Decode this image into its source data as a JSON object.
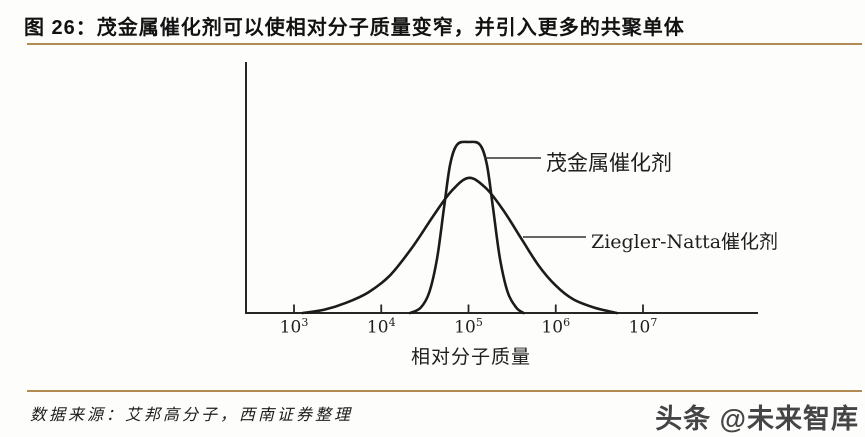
{
  "figure": {
    "title": "图 26：茂金属催化剂可以使相对分子质量变窄，并引入更多的共聚单体",
    "source_note": "数据来源：艾邦高分子，西南证券整理",
    "watermark": "头条 @未来智库",
    "accent_color": "#b28b52"
  },
  "chart_data": {
    "type": "line",
    "title": "",
    "xlabel": "相对分子质量",
    "ylabel": "",
    "x_axis": {
      "label": "相对分子质量",
      "scale": "log10",
      "tick_base": "10",
      "tick_exponents": [
        3,
        4,
        5,
        6,
        7
      ],
      "tick_values": [
        1000,
        10000,
        100000,
        1000000,
        10000000
      ],
      "range_log10": [
        2.4,
        7.3
      ]
    },
    "y_axis": {
      "label": "",
      "ticks": [],
      "range_relative": [
        0,
        1
      ]
    },
    "grid": false,
    "legend_position": "inline-callouts",
    "points_format": "[log10_relative_molecular_mass, relative_abundance_0_to_1]",
    "series": [
      {
        "name": "茂金属催化剂",
        "color": "#1b1b1b",
        "peak_log10_x": 5.0,
        "peak_relative_height": 1.0,
        "distribution": "narrow",
        "points": [
          [
            4.33,
            0.0
          ],
          [
            4.45,
            0.03
          ],
          [
            4.55,
            0.12
          ],
          [
            4.64,
            0.32
          ],
          [
            4.72,
            0.62
          ],
          [
            4.79,
            0.87
          ],
          [
            4.87,
            0.985
          ],
          [
            5.0,
            1.0
          ],
          [
            5.13,
            0.985
          ],
          [
            5.21,
            0.87
          ],
          [
            5.28,
            0.62
          ],
          [
            5.36,
            0.32
          ],
          [
            5.45,
            0.12
          ],
          [
            5.55,
            0.03
          ],
          [
            5.63,
            0.0
          ]
        ]
      },
      {
        "name": "Ziegler-Natta催化剂",
        "color": "#1b1b1b",
        "peak_log10_x": 5.0,
        "peak_relative_height": 0.79,
        "distribution": "broad",
        "points": [
          [
            3.1,
            0.0
          ],
          [
            3.35,
            0.02
          ],
          [
            3.6,
            0.06
          ],
          [
            3.85,
            0.12
          ],
          [
            4.1,
            0.22
          ],
          [
            4.35,
            0.38
          ],
          [
            4.6,
            0.57
          ],
          [
            4.8,
            0.71
          ],
          [
            5.0,
            0.79
          ],
          [
            5.2,
            0.73
          ],
          [
            5.4,
            0.6
          ],
          [
            5.6,
            0.44
          ],
          [
            5.8,
            0.28
          ],
          [
            6.0,
            0.16
          ],
          [
            6.2,
            0.08
          ],
          [
            6.45,
            0.03
          ],
          [
            6.7,
            0.0
          ]
        ]
      }
    ]
  }
}
